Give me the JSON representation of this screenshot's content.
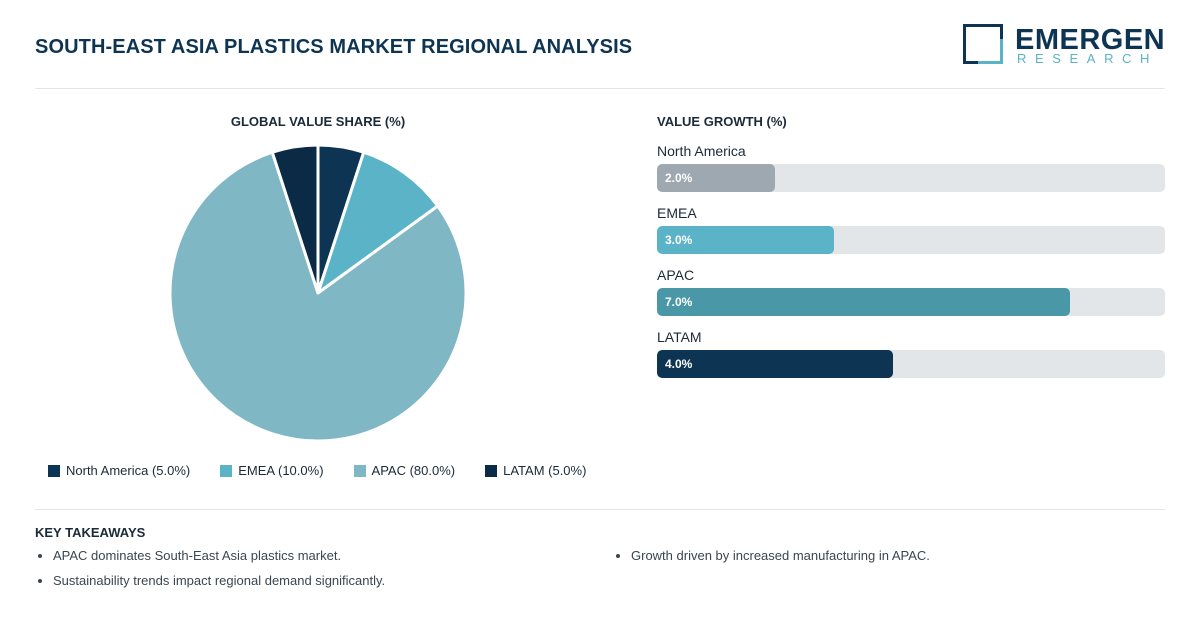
{
  "header": {
    "title": "SOUTH-EAST ASIA PLASTICS MARKET REGIONAL ANALYSIS",
    "logo_word": "EMERGEN",
    "logo_sub": "RESEARCH"
  },
  "chart_data": [
    {
      "type": "pie",
      "title": "GLOBAL VALUE SHARE (%)",
      "slices": [
        {
          "name": "North America",
          "value": 5.0,
          "color": "#0e3454",
          "legend": "North America (5.0%)"
        },
        {
          "name": "EMEA",
          "value": 10.0,
          "color": "#5ab3c7",
          "legend": "EMEA (10.0%)"
        },
        {
          "name": "APAC",
          "value": 80.0,
          "color": "#7fb7c5",
          "legend": "APAC (80.0%)"
        },
        {
          "name": "LATAM",
          "value": 5.0,
          "color": "#0b2a45",
          "legend": "LATAM (5.0%)"
        }
      ]
    },
    {
      "type": "bar",
      "title": "VALUE GROWTH (%)",
      "xlim": [
        0,
        8.6
      ],
      "bars": [
        {
          "category": "North America",
          "value": 2.0,
          "label": "2.0%",
          "color": "#9ea8b1"
        },
        {
          "category": "EMEA",
          "value": 3.0,
          "label": "3.0%",
          "color": "#5ab3c7"
        },
        {
          "category": "APAC",
          "value": 7.0,
          "label": "7.0%",
          "color": "#4a97a8"
        },
        {
          "category": "LATAM",
          "value": 4.0,
          "label": "4.0%",
          "color": "#0e3454"
        }
      ]
    }
  ],
  "takeaways": {
    "title": "KEY TAKEAWAYS",
    "left": [
      "APAC dominates South-East Asia plastics market.",
      "Sustainability trends impact regional demand significantly."
    ],
    "right": [
      "Growth driven by increased manufacturing in APAC."
    ]
  }
}
